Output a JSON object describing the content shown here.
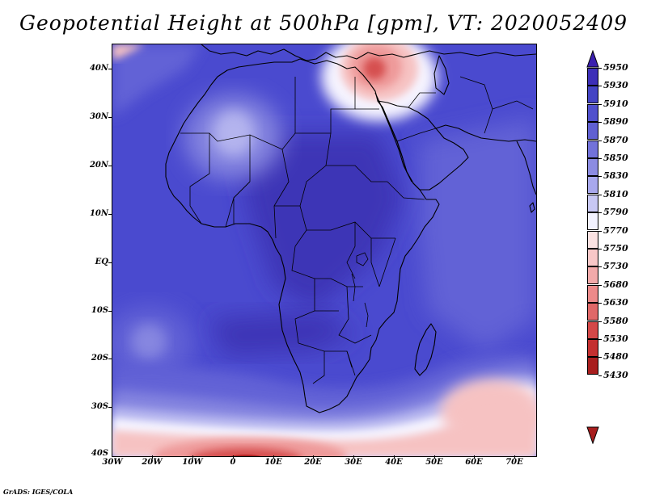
{
  "title": "Geopotential Height at 500hPa [gpm], VT: 2020052409",
  "footer": "GrADS: IGES/COLA",
  "map": {
    "lon_range": [
      -30,
      75
    ],
    "lat_range": [
      -40,
      45
    ],
    "lat_labels": [
      "40N",
      "30N",
      "20N",
      "10N",
      "EQ",
      "10S",
      "20S",
      "30S",
      "40S"
    ],
    "lat_values": [
      40,
      30,
      20,
      10,
      0,
      -10,
      -20,
      -30,
      -40
    ],
    "lon_labels": [
      "30W",
      "20W",
      "10W",
      "0",
      "10E",
      "20E",
      "30E",
      "40E",
      "50E",
      "60E",
      "70E"
    ],
    "lon_values": [
      -30,
      -20,
      -10,
      0,
      10,
      20,
      30,
      40,
      50,
      60,
      70
    ]
  },
  "colorbar": {
    "levels": [
      "5950",
      "5930",
      "5910",
      "5890",
      "5870",
      "5850",
      "5830",
      "5810",
      "5790",
      "5770",
      "5750",
      "5730",
      "5680",
      "5630",
      "5580",
      "5530",
      "5480",
      "5430"
    ],
    "colors": [
      "#3a1fae",
      "#3d2fb8",
      "#4444c4",
      "#5050cc",
      "#6060d2",
      "#7272da",
      "#8c8ce2",
      "#a8a8ec",
      "#c8c8f4",
      "#f2f2ff",
      "#fbe2e2",
      "#f8c8c8",
      "#f2aaaa",
      "#ec8a8a",
      "#e06868",
      "#d44848",
      "#c43030",
      "#a81e1e"
    ]
  },
  "features": {
    "colors": {
      "base": "#4a4acf",
      "deep": "#3c34b6",
      "mid": "#6262d6",
      "light": "#8686e0",
      "pale": "#b4b4ee",
      "white": "#f6f4ff",
      "pink": "#f6c2c2",
      "rose": "#ee9a9a",
      "red": "#d65050",
      "darkred": "#b42424",
      "coast": "#000000"
    }
  }
}
